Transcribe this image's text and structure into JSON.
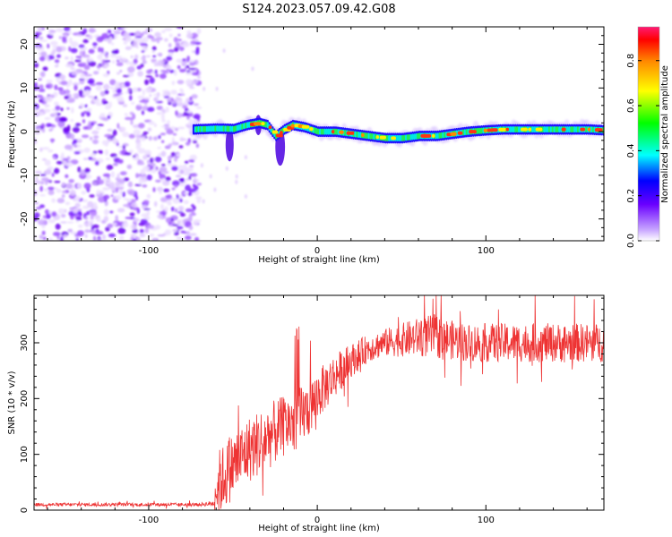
{
  "figure_title": "S124.2023.057.09.42.G08",
  "chart_data": [
    {
      "type": "heatmap",
      "title": "S124.2023.057.09.42.G08",
      "xlabel": "Height of straight line (km)",
      "ylabel": "Frequency (Hz)",
      "xlim": [
        -168,
        170
      ],
      "ylim": [
        -25,
        24
      ],
      "x_ticks": [
        -100,
        0,
        100
      ],
      "y_ticks": [
        -20,
        -10,
        0,
        10,
        20
      ],
      "noise_region_x": [
        -168,
        -72
      ],
      "signal_start_x": -74,
      "ridge": {
        "x": [
          -74,
          -60,
          -50,
          -42,
          -35,
          -30,
          -25,
          -20,
          -15,
          -8,
          0,
          10,
          20,
          30,
          40,
          50,
          60,
          70,
          80,
          90,
          100,
          110,
          120,
          130,
          140,
          150,
          160,
          170
        ],
        "freq": [
          0.5,
          0.7,
          0.6,
          1.5,
          2.0,
          1.5,
          -1.0,
          0.5,
          1.5,
          1.0,
          0.0,
          0.0,
          -0.5,
          -1.0,
          -1.5,
          -1.5,
          -1.0,
          -1.0,
          -0.5,
          0.0,
          0.3,
          0.5,
          0.5,
          0.5,
          0.5,
          0.5,
          0.5,
          0.3
        ]
      },
      "colorbar": {
        "label": "Normalized spectral amplitude",
        "range": [
          0,
          0.95
        ],
        "ticks": [
          "0.0",
          "0.2",
          "0.4",
          "0.6",
          "0.8"
        ]
      }
    },
    {
      "type": "line",
      "xlabel": "Height of straight line (km)",
      "ylabel": "SNR (10 * v/v)",
      "xlim": [
        -168,
        170
      ],
      "ylim": [
        0,
        385
      ],
      "x_ticks": [
        -100,
        0,
        100
      ],
      "y_ticks": [
        0,
        100,
        200,
        300
      ],
      "series": [
        {
          "name": "SNR",
          "color": "#ee3333",
          "x": [
            -168,
            -140,
            -100,
            -70,
            -62,
            -58,
            -50,
            -40,
            -30,
            -20,
            -12,
            -5,
            0,
            10,
            20,
            30,
            40,
            50,
            60,
            70,
            80,
            90,
            100,
            110,
            120,
            130,
            140,
            150,
            160,
            170
          ],
          "values": [
            10,
            10,
            10,
            10,
            12,
            50,
            80,
            110,
            130,
            150,
            165,
            180,
            205,
            240,
            268,
            290,
            300,
            305,
            310,
            312,
            305,
            300,
            300,
            300,
            300,
            300,
            300,
            300,
            300,
            300
          ],
          "spike_amplitude": [
            3,
            3,
            3,
            3,
            5,
            60,
            60,
            60,
            60,
            55,
            55,
            50,
            45,
            40,
            30,
            25,
            25,
            30,
            35,
            40,
            35,
            35,
            35,
            35,
            35,
            35,
            35,
            35,
            35,
            35
          ]
        }
      ]
    }
  ]
}
